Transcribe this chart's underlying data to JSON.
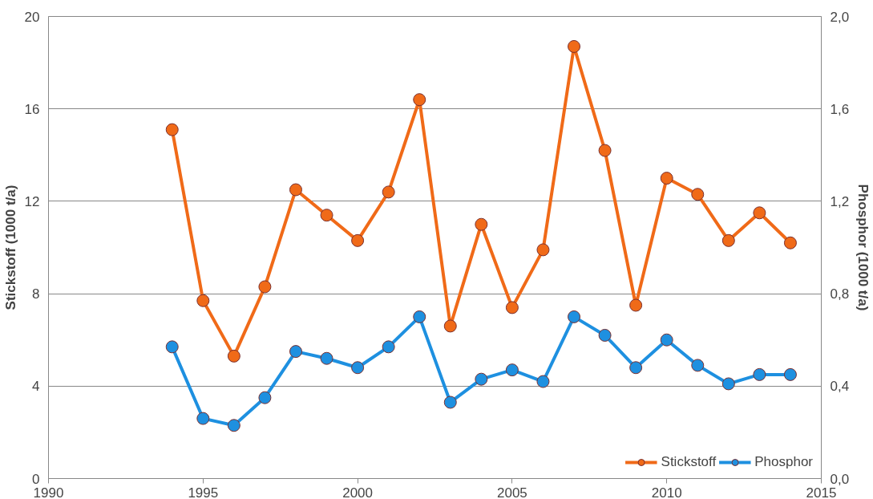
{
  "chart_data": {
    "type": "line",
    "ylabel": "Stickstoff (1000 t/a)",
    "y2label": "Phosphor (1000 t/a)",
    "x": [
      1994,
      1995,
      1996,
      1997,
      1998,
      1999,
      2000,
      2001,
      2002,
      2003,
      2004,
      2005,
      2006,
      2007,
      2008,
      2009,
      2010,
      2011,
      2012,
      2013,
      2014
    ],
    "series": [
      {
        "name": "Stickstoff",
        "color": "#f06a18",
        "values": [
          15.1,
          7.7,
          5.3,
          8.3,
          12.5,
          11.4,
          10.3,
          12.4,
          16.4,
          6.6,
          11.0,
          7.4,
          9.9,
          18.7,
          14.2,
          7.5,
          13.0,
          12.3,
          10.3,
          11.5,
          10.2
        ]
      },
      {
        "name": "Phosphor",
        "color": "#1e90e0",
        "axis": "y2",
        "values": [
          0.57,
          0.26,
          0.23,
          0.35,
          0.55,
          0.52,
          0.48,
          0.57,
          0.7,
          0.33,
          0.43,
          0.47,
          0.42,
          0.7,
          0.62,
          0.48,
          0.6,
          0.49,
          0.41,
          0.45,
          0.45
        ]
      }
    ],
    "xlim": [
      1990,
      2015
    ],
    "xticks": [
      1990,
      1995,
      2000,
      2005,
      2010,
      2015
    ],
    "ylim": [
      0,
      20
    ],
    "yticks": [
      0,
      4,
      8,
      12,
      16,
      20
    ],
    "y2lim": [
      0,
      2.0
    ],
    "y2ticks": [
      {
        "value": 0,
        "label": "0,0"
      },
      {
        "value": 0.4,
        "label": "0,4"
      },
      {
        "value": 0.8,
        "label": "0,8"
      },
      {
        "value": 1.2,
        "label": "1,2"
      },
      {
        "value": 1.6,
        "label": "1,6"
      },
      {
        "value": 2.0,
        "label": "2,0"
      }
    ],
    "grid": "y",
    "legend": "bottom right",
    "marker": "circle",
    "line_style": "solid"
  }
}
